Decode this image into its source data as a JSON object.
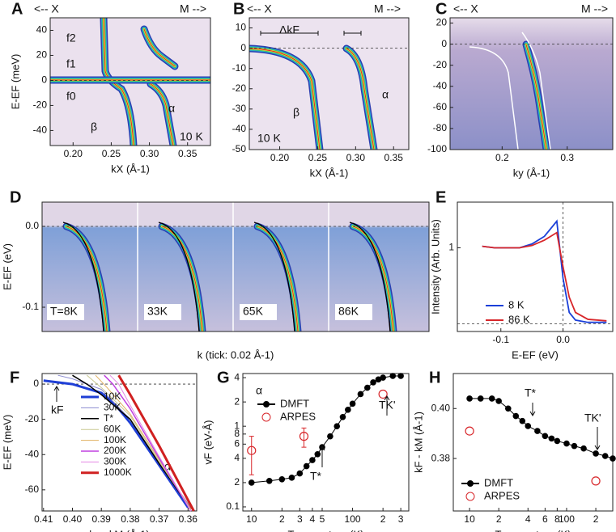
{
  "chart_data": [
    {
      "panel": "A",
      "type": "heatmap",
      "xlabel": "kX (Å-1)",
      "ylabel": "E-EF (meV)",
      "xlim": [
        0.17,
        0.38
      ],
      "ylim": [
        -52,
        50
      ],
      "xticks": [
        {
          "value": 0.2,
          "label": "0.20"
        },
        0.25,
        {
          "value": 0.3,
          "label": "0.30"
        },
        0.35
      ],
      "yticks": [
        40,
        20,
        0,
        -20,
        -40
      ],
      "annotations": [
        "<-- X",
        "M -->",
        "f2",
        "f1",
        "f0",
        "β",
        "α",
        "10 K"
      ]
    },
    {
      "panel": "B",
      "type": "heatmap",
      "xlabel": "kX (Å-1)",
      "xlim": [
        0.16,
        0.37
      ],
      "ylim": [
        -50,
        15
      ],
      "xticks": [
        {
          "value": 0.2,
          "label": "0.20"
        },
        0.25,
        {
          "value": 0.3,
          "label": "0.30"
        },
        0.35
      ],
      "yticks": [
        10,
        0,
        -10,
        -20,
        -30,
        -40,
        -50
      ],
      "annotations": [
        "<-- X",
        "M -->",
        "ΔkF",
        "β",
        "α",
        "10 K"
      ]
    },
    {
      "panel": "C",
      "type": "heatmap",
      "xlabel": "ky (Å-1)",
      "xlim": [
        0.12,
        0.37
      ],
      "ylim": [
        -100,
        25
      ],
      "xticks": [
        0.2,
        0.3
      ],
      "yticks": [
        20,
        0,
        -20,
        -40,
        -60,
        -80,
        -100
      ],
      "annotations": [
        "<-- X",
        "M -->"
      ]
    },
    {
      "panel": "D",
      "type": "heatmap",
      "xlabel": "k   (tick: 0.02 Å-1)",
      "ylabel": "E-EF (eV)",
      "ylim": [
        -0.13,
        0.03
      ],
      "yticks": [
        {
          "value": 0,
          "label": "0.0"
        },
        -0.1
      ],
      "annotations": [
        "T=8K",
        "33K",
        "65K",
        "86K"
      ]
    },
    {
      "panel": "E",
      "type": "line",
      "xlabel": "E-EF (eV)",
      "ylabel": "Intensity (Arb. Units)",
      "xlim": [
        -0.17,
        0.08
      ],
      "ylim": [
        -0.1,
        1.6
      ],
      "xticks": [
        -0.1,
        {
          "value": 0,
          "label": "0.0"
        }
      ],
      "yticks": [
        1
      ],
      "series": [
        {
          "name": "8 K",
          "color": "#1a3fd8",
          "x": [
            -0.13,
            -0.11,
            -0.09,
            -0.07,
            -0.05,
            -0.03,
            -0.02,
            -0.01,
            0,
            0.01,
            0.02,
            0.04,
            0.07
          ],
          "values": [
            1.02,
            1.0,
            1.0,
            1.0,
            1.05,
            1.15,
            1.25,
            1.35,
            0.6,
            0.15,
            0.05,
            0.02,
            0.02
          ]
        },
        {
          "name": "86 K",
          "color": "#d8262a",
          "x": [
            -0.13,
            -0.11,
            -0.09,
            -0.07,
            -0.05,
            -0.03,
            -0.02,
            -0.01,
            0,
            0.01,
            0.02,
            0.04,
            0.07
          ],
          "values": [
            1.02,
            1.0,
            1.0,
            1.0,
            1.03,
            1.1,
            1.15,
            1.2,
            0.75,
            0.35,
            0.15,
            0.06,
            0.04
          ]
        }
      ],
      "annotations": []
    },
    {
      "panel": "F",
      "type": "line",
      "xlabel": "ky - kM (Å-1)",
      "ylabel": "E-EF (meV)",
      "xlim": [
        0.4105,
        0.357
      ],
      "ylim": [
        -72,
        6
      ],
      "xticks": [
        0.41,
        {
          "value": 0.4,
          "label": "0.40"
        },
        0.39,
        0.38,
        0.37,
        0.36
      ],
      "yticks": [
        0,
        -20,
        -40,
        -60
      ],
      "series": [
        {
          "name": "10K",
          "color": "#1f3fd6",
          "width": 3,
          "x": [
            0.41,
            0.4,
            0.39,
            0.385,
            0.38,
            0.37,
            0.36
          ],
          "values": [
            2,
            0,
            -5,
            -12,
            -22,
            -46,
            -70
          ]
        },
        {
          "name": "30K",
          "color": "#8c8cd0",
          "width": 1,
          "x": [
            0.405,
            0.4,
            0.39,
            0.38,
            0.37,
            0.359
          ],
          "values": [
            5,
            3,
            -3,
            -20,
            -45,
            -70
          ]
        },
        {
          "name": "T*",
          "color": "#000000",
          "width": 1.5,
          "x": [
            0.4,
            0.395,
            0.39,
            0.38,
            0.37,
            0.359
          ],
          "values": [
            5,
            0,
            -6,
            -20,
            -45,
            -71
          ]
        },
        {
          "name": "60K",
          "color": "#c8c890",
          "width": 1,
          "x": [
            0.395,
            0.39,
            0.38,
            0.37,
            0.359
          ],
          "values": [
            5,
            -2,
            -18,
            -44,
            -71
          ]
        },
        {
          "name": "100K",
          "color": "#e0b060",
          "width": 1,
          "x": [
            0.392,
            0.388,
            0.38,
            0.37,
            0.359
          ],
          "values": [
            5,
            -2,
            -17,
            -43,
            -71
          ]
        },
        {
          "name": "200K",
          "color": "#c040e0",
          "width": 1.5,
          "x": [
            0.389,
            0.386,
            0.38,
            0.37,
            0.359
          ],
          "values": [
            5,
            0,
            -14,
            -42,
            -72
          ]
        },
        {
          "name": "300K",
          "color": "#e488e4",
          "width": 1,
          "x": [
            0.387,
            0.384,
            0.38,
            0.37,
            0.359
          ],
          "values": [
            5,
            0,
            -12,
            -41,
            -72
          ]
        },
        {
          "name": "1000K",
          "color": "#d02020",
          "width": 3,
          "x": [
            0.384,
            0.38,
            0.37,
            0.358
          ],
          "values": [
            5,
            -6,
            -35,
            -72
          ]
        }
      ],
      "annotations": [
        "kF",
        "α"
      ]
    },
    {
      "panel": "G",
      "type": "scatter",
      "xlabel": "Temperature (K)",
      "ylabel": "vF (eV-Å)",
      "xlog": true,
      "ylog": true,
      "xlim": [
        8.2,
        360
      ],
      "ylim": [
        0.089,
        4.5
      ],
      "xticks": [
        10,
        {
          "value": 20,
          "label": "2"
        },
        {
          "value": 30,
          "label": "3"
        },
        {
          "value": 40,
          "label": "4"
        },
        {
          "value": 50,
          "label": "5"
        },
        100,
        {
          "value": 200,
          "label": "2"
        },
        {
          "value": 300,
          "label": "3"
        }
      ],
      "yticks": [
        0.1,
        {
          "value": 0.2,
          "label": "2"
        },
        {
          "value": 0.4,
          "label": "4"
        },
        {
          "value": 0.6,
          "label": "6"
        },
        {
          "value": 0.8,
          "label": "8"
        },
        1,
        {
          "value": 2,
          "label": "2"
        },
        {
          "value": 4,
          "label": "4"
        }
      ],
      "series": [
        {
          "name": "DMFT",
          "color": "#000000",
          "x": [
            10,
            15,
            20,
            25,
            30,
            35,
            40,
            45,
            50,
            60,
            70,
            80,
            90,
            100,
            120,
            140,
            160,
            180,
            200,
            250,
            300
          ],
          "values": [
            0.2,
            0.21,
            0.22,
            0.23,
            0.26,
            0.32,
            0.38,
            0.45,
            0.55,
            0.75,
            1.0,
            1.3,
            1.6,
            1.9,
            2.5,
            3.0,
            3.5,
            3.8,
            4.0,
            4.2,
            4.2
          ]
        },
        {
          "name": "ARPES",
          "color": "#d8262a",
          "x": [
            10,
            33,
            200
          ],
          "values": [
            0.5,
            0.75,
            2.5
          ],
          "errors": [
            0.25,
            0.2,
            null
          ]
        }
      ],
      "annotations": [
        "α",
        "T*",
        "TK'"
      ]
    },
    {
      "panel": "H",
      "type": "scatter",
      "xlabel": "Temperature (K)",
      "ylabel": "kF - kM (Å-1)",
      "xlog": true,
      "xlim": [
        6.8,
        299
      ],
      "ylim": [
        0.359,
        0.414
      ],
      "xticks": [
        10,
        {
          "value": 20,
          "label": "2"
        },
        {
          "value": 40,
          "label": "4"
        },
        {
          "value": 60,
          "label": "6"
        },
        {
          "value": 80,
          "label": "8"
        },
        100,
        {
          "value": 200,
          "label": "2"
        }
      ],
      "yticks": [
        {
          "value": 0.4,
          "label": "0.40"
        },
        {
          "value": 0.38,
          "label": "0.38"
        }
      ],
      "series": [
        {
          "name": "DMFT",
          "color": "#000000",
          "x": [
            10,
            13,
            17,
            20,
            25,
            30,
            35,
            40,
            50,
            60,
            70,
            80,
            100,
            120,
            150,
            200,
            250,
            299
          ],
          "values": [
            0.404,
            0.404,
            0.404,
            0.403,
            0.4,
            0.397,
            0.395,
            0.393,
            0.391,
            0.389,
            0.388,
            0.387,
            0.386,
            0.385,
            0.384,
            0.382,
            0.381,
            0.38
          ]
        },
        {
          "name": "ARPES",
          "color": "#d8262a",
          "x": [
            10,
            200
          ],
          "values": [
            0.391,
            0.371
          ]
        }
      ],
      "annotations": [
        "T*",
        "TK'"
      ]
    }
  ]
}
